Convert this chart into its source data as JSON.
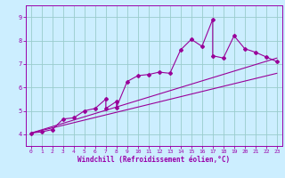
{
  "xlabel": "Windchill (Refroidissement éolien,°C)",
  "bg_color": "#cceeff",
  "grid_color": "#99cccc",
  "line_color": "#990099",
  "spine_color": "#9900aa",
  "xlim": [
    -0.5,
    23.5
  ],
  "ylim": [
    3.5,
    9.5
  ],
  "yticks": [
    4,
    5,
    6,
    7,
    8,
    9
  ],
  "xticks": [
    0,
    1,
    2,
    3,
    4,
    5,
    6,
    7,
    8,
    9,
    10,
    11,
    12,
    13,
    14,
    15,
    16,
    17,
    18,
    19,
    20,
    21,
    22,
    23
  ],
  "series": [
    [
      0,
      4.05
    ],
    [
      1,
      4.1
    ],
    [
      2,
      4.2
    ],
    [
      3,
      4.65
    ],
    [
      4,
      4.7
    ],
    [
      5,
      5.0
    ],
    [
      6,
      5.1
    ],
    [
      7,
      5.5
    ],
    [
      7,
      5.1
    ],
    [
      8,
      5.4
    ],
    [
      8,
      5.15
    ],
    [
      9,
      6.25
    ],
    [
      10,
      6.5
    ],
    [
      11,
      6.55
    ],
    [
      12,
      6.65
    ],
    [
      13,
      6.6
    ],
    [
      14,
      7.6
    ],
    [
      15,
      8.05
    ],
    [
      16,
      7.75
    ],
    [
      17,
      8.9
    ],
    [
      17,
      7.35
    ],
    [
      18,
      7.25
    ],
    [
      19,
      8.2
    ],
    [
      20,
      7.65
    ],
    [
      21,
      7.5
    ],
    [
      22,
      7.3
    ],
    [
      23,
      7.1
    ]
  ],
  "line1": [
    [
      0,
      4.05
    ],
    [
      23,
      7.25
    ]
  ],
  "line2": [
    [
      0,
      4.05
    ],
    [
      23,
      6.6
    ]
  ]
}
